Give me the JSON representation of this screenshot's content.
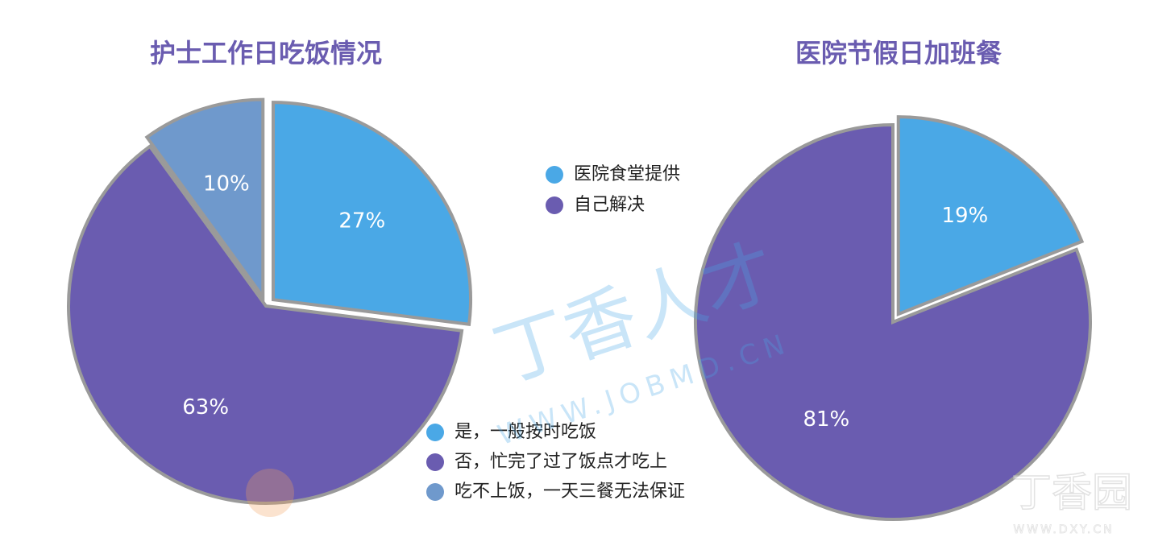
{
  "chart_data": [
    {
      "type": "pie",
      "title": "护士工作日吃饭情况",
      "categories": [
        "是，一般按时吃饭",
        "否，忙完了过了饭点才吃上",
        "吃不上饭，一天三餐无法保证"
      ],
      "values": [
        27,
        63,
        10
      ],
      "value_labels": [
        "27%",
        "63%",
        "10%"
      ],
      "colors": [
        "#4aa8e6",
        "#6a5cb0",
        "#6f99cc"
      ]
    },
    {
      "type": "pie",
      "title": "医院节假日加班餐",
      "categories": [
        "医院食堂提供",
        "自己解决"
      ],
      "values": [
        19,
        81
      ],
      "value_labels": [
        "19%",
        "81%"
      ],
      "colors": [
        "#4aa8e6",
        "#6a5cb0"
      ]
    }
  ],
  "watermark": {
    "brand": "丁香人才",
    "url": "WWW.JOBMD.CN",
    "logo": "丁香园",
    "logo_url": "WWW.DXY.CN"
  }
}
